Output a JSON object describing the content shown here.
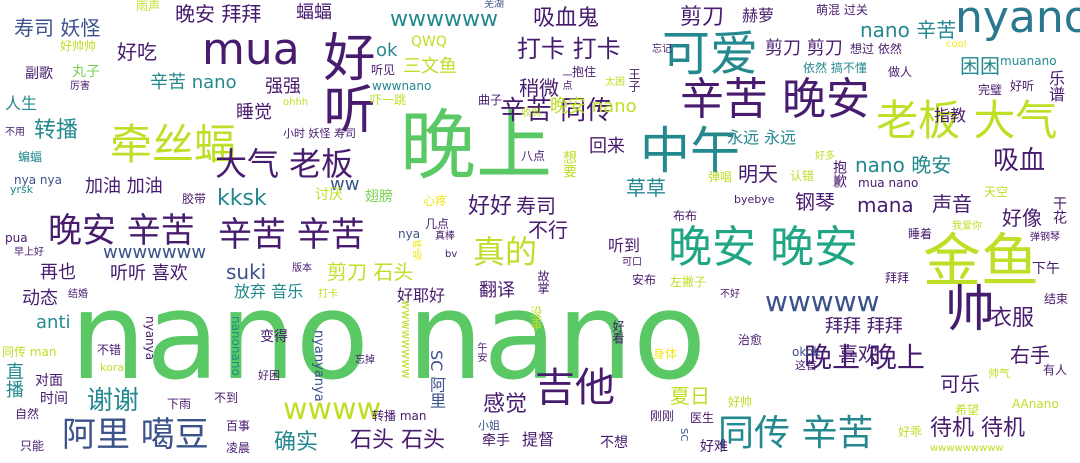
{
  "palette": {
    "green": "#5ac864",
    "teal": "#23898e",
    "purple": "#471b6e",
    "blue": "#3b528b",
    "lime": "#bddf26",
    "yellow": "#f2e61c",
    "cyan": "#2a788e",
    "mint": "#7ad151",
    "deep": "#440154",
    "sea": "#21a685"
  },
  "words": [
    {
      "text": "nano nano"
    },
    {
      "text": "晚上"
    },
    {
      "text": "金鱼"
    },
    {
      "text": "晚安 晚安"
    },
    {
      "text": "中午"
    },
    {
      "text": "辛苦 晚安"
    },
    {
      "text": "可爱"
    },
    {
      "text": "nyano"
    },
    {
      "text": "mua"
    },
    {
      "text": "好听"
    },
    {
      "text": "牵丝蝠"
    },
    {
      "text": "老板 大气"
    },
    {
      "text": "大气 老板"
    },
    {
      "text": "晚安 辛苦"
    },
    {
      "text": "辛苦 辛苦"
    },
    {
      "text": "真的"
    },
    {
      "text": "吉他"
    },
    {
      "text": "同传 辛苦"
    },
    {
      "text": "阿里 噶豆"
    },
    {
      "text": "帅"
    },
    {
      "text": "wwwww"
    },
    {
      "text": "wwww"
    },
    {
      "text": "晚上 晚上"
    },
    {
      "text": "辛苦 同传"
    },
    {
      "text": "打卡 打卡"
    },
    {
      "text": "剪刀"
    },
    {
      "text": "吸血鬼"
    },
    {
      "text": "wwwwww"
    },
    {
      "text": "晚安 拜拜"
    },
    {
      "text": "寿司 妖怪"
    },
    {
      "text": "好吃"
    },
    {
      "text": "蝠蝠"
    },
    {
      "text": "转播"
    },
    {
      "text": "kksk"
    },
    {
      "text": "nano 晚安"
    },
    {
      "text": "吸血"
    },
    {
      "text": "好好"
    },
    {
      "text": "谢谢"
    },
    {
      "text": "确实"
    },
    {
      "text": "石头 石头"
    },
    {
      "text": "待机 待机"
    },
    {
      "text": "衣服"
    },
    {
      "text": "好像"
    },
    {
      "text": "mana"
    },
    {
      "text": "声音"
    },
    {
      "text": "suki"
    },
    {
      "text": "剪刀 石头"
    },
    {
      "text": "感觉"
    },
    {
      "text": "喜欢"
    },
    {
      "text": "右手"
    },
    {
      "text": "可乐"
    },
    {
      "text": "夏日"
    },
    {
      "text": "草草"
    },
    {
      "text": "寿司"
    },
    {
      "text": "明天"
    },
    {
      "text": "钢琴"
    },
    {
      "text": "不行"
    },
    {
      "text": "稍微"
    },
    {
      "text": "晚安 nano"
    },
    {
      "text": "回来"
    },
    {
      "text": "nano 辛苦"
    },
    {
      "text": "困困"
    },
    {
      "text": "辛苦 nano"
    },
    {
      "text": "强强"
    },
    {
      "text": "三文鱼"
    },
    {
      "text": "ok"
    },
    {
      "text": "QWQ"
    },
    {
      "text": "睡觉"
    },
    {
      "text": "加油 加油"
    },
    {
      "text": "ww"
    },
    {
      "text": "剪刀 剪刀"
    },
    {
      "text": "nyanyanya"
    },
    {
      "text": "muanano"
    },
    {
      "text": "拜拜 拜拜"
    },
    {
      "text": "wwwwwww"
    },
    {
      "text": "听听 喜欢"
    },
    {
      "text": "再也"
    },
    {
      "text": "动态"
    },
    {
      "text": "anti"
    },
    {
      "text": "放弃 音乐"
    },
    {
      "text": "好耶好"
    },
    {
      "text": "翻译"
    },
    {
      "text": "指教"
    },
    {
      "text": "永远 永远"
    },
    {
      "text": "人生"
    },
    {
      "text": "副歌"
    },
    {
      "text": "丸子"
    },
    {
      "text": "赫萝"
    },
    {
      "text": "萌混 过关"
    },
    {
      "text": "雨声"
    },
    {
      "text": "芜湖"
    },
    {
      "text": "好帅帅"
    },
    {
      "text": "依然 搞不懂"
    },
    {
      "text": "想过 依然"
    },
    {
      "text": "做人"
    },
    {
      "text": "完璧"
    },
    {
      "text": "好听"
    },
    {
      "text": "cool"
    },
    {
      "text": "忘记"
    },
    {
      "text": "一点"
    },
    {
      "text": "抱住"
    },
    {
      "text": "太困"
    },
    {
      "text": "王子"
    },
    {
      "text": "曲子"
    },
    {
      "text": "听见"
    },
    {
      "text": "wwwnano"
    },
    {
      "text": "吓一跳"
    },
    {
      "text": "厉害"
    },
    {
      "text": "ohhh"
    },
    {
      "text": "小时 妖怪 寿司"
    },
    {
      "text": "收到"
    },
    {
      "text": "八点"
    },
    {
      "text": "想要"
    },
    {
      "text": "不用"
    },
    {
      "text": "蝙蝠"
    },
    {
      "text": "yrsk"
    },
    {
      "text": "nya nya"
    },
    {
      "text": "胶带"
    },
    {
      "text": "讨厌"
    },
    {
      "text": "翅膀"
    },
    {
      "text": "心疼"
    },
    {
      "text": "弹唱"
    },
    {
      "text": "认错"
    },
    {
      "text": "好多"
    },
    {
      "text": "抱歉"
    },
    {
      "text": "mua nano"
    },
    {
      "text": "天空"
    },
    {
      "text": "干花"
    },
    {
      "text": "byebye"
    },
    {
      "text": "布布"
    },
    {
      "text": "几点"
    },
    {
      "text": "真棒"
    },
    {
      "text": "nya"
    },
    {
      "text": "呼吸"
    },
    {
      "text": "睡着"
    },
    {
      "text": "我爱你"
    },
    {
      "text": "弹钢琴"
    },
    {
      "text": "pua"
    },
    {
      "text": "早上好"
    },
    {
      "text": "版本"
    },
    {
      "text": "bv"
    },
    {
      "text": "听到"
    },
    {
      "text": "可口"
    },
    {
      "text": "下午"
    },
    {
      "text": "拜拜"
    },
    {
      "text": "安布"
    },
    {
      "text": "左撇子"
    },
    {
      "text": "结婚"
    },
    {
      "text": "打卡"
    },
    {
      "text": "故掌"
    },
    {
      "text": "不好"
    },
    {
      "text": "结束"
    },
    {
      "text": "变得"
    },
    {
      "text": "没事"
    },
    {
      "text": "好看"
    },
    {
      "text": "身体"
    },
    {
      "text": "治愈"
    },
    {
      "text": "同传 man"
    },
    {
      "text": "不错"
    },
    {
      "text": "nyanya"
    },
    {
      "text": "nanonano"
    },
    {
      "text": "忘掉"
    },
    {
      "text": "午安"
    },
    {
      "text": "okok"
    },
    {
      "text": "这首"
    },
    {
      "text": "有人"
    },
    {
      "text": "直播"
    },
    {
      "text": "对面"
    },
    {
      "text": "kora"
    },
    {
      "text": "好困"
    },
    {
      "text": "帅气"
    },
    {
      "text": "SC 阿里"
    },
    {
      "text": "时间"
    },
    {
      "text": "下雨"
    },
    {
      "text": "不到"
    },
    {
      "text": "自然"
    },
    {
      "text": "百事"
    },
    {
      "text": "转播 man"
    },
    {
      "text": "刚刚"
    },
    {
      "text": "医生"
    },
    {
      "text": "好帅"
    },
    {
      "text": "希望"
    },
    {
      "text": "AAnano"
    },
    {
      "text": "小姐"
    },
    {
      "text": "只能"
    },
    {
      "text": "凌晨"
    },
    {
      "text": "牵手"
    },
    {
      "text": "提督"
    },
    {
      "text": "不想"
    },
    {
      "text": "SC"
    },
    {
      "text": "好难"
    },
    {
      "text": "好乖"
    },
    {
      "text": "wwwwwwwww"
    },
    {
      "text": "wwwwwwww"
    },
    {
      "text": "乐谱"
    }
  ]
}
